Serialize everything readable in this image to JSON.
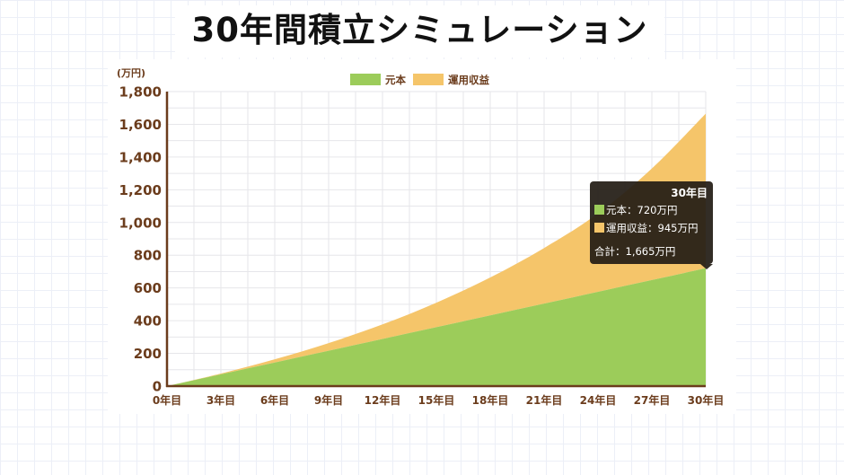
{
  "title": "30年間積立シミュレーション",
  "chart_data": {
    "type": "area",
    "stacked": true,
    "x": [
      0,
      3,
      6,
      9,
      12,
      15,
      18,
      21,
      24,
      27,
      30
    ],
    "categories": [
      "0年目",
      "3年目",
      "6年目",
      "9年目",
      "12年目",
      "15年目",
      "18年目",
      "21年目",
      "24年目",
      "27年目",
      "30年目"
    ],
    "series": [
      {
        "name": "元本",
        "color": "#9ccc5a",
        "values": [
          0,
          72,
          144,
          216,
          288,
          360,
          432,
          504,
          576,
          648,
          720
        ]
      },
      {
        "name": "運用収益",
        "color": "#f5c56a",
        "values": [
          0,
          5,
          20,
          47,
          89,
          150,
          232,
          340,
          479,
          682,
          945
        ]
      }
    ],
    "ylabel": "(万円)",
    "ylim": [
      0,
      1800
    ],
    "yticks": [
      "0",
      "200",
      "400",
      "600",
      "800",
      "1,000",
      "1,200",
      "1,400",
      "1,600",
      "1,800"
    ],
    "grid": true,
    "legend": "top-center",
    "tooltip": {
      "title": "30年目",
      "lines": [
        "元本：720万円",
        "運用収益：945万円"
      ],
      "total": "合計：1,665万円"
    }
  }
}
